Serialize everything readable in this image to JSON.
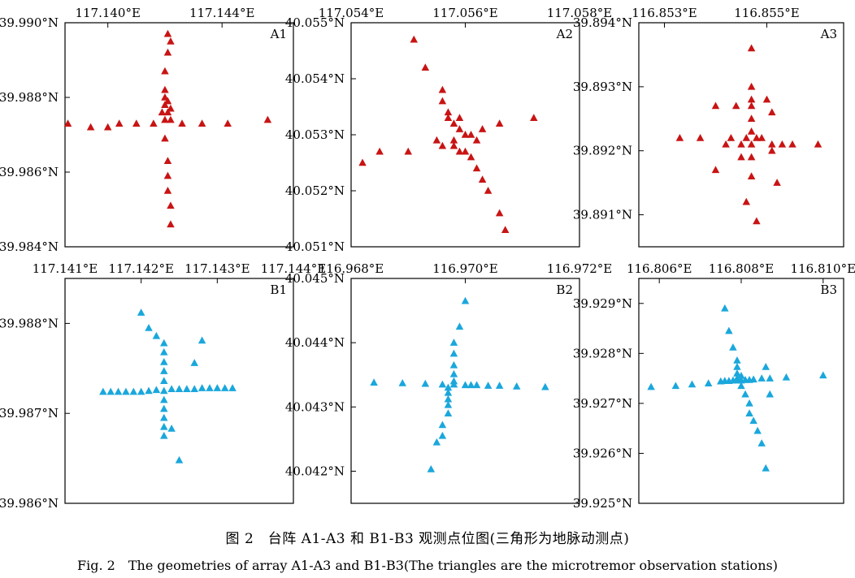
{
  "figure": {
    "caption_cn": "图 2　台阵 A1-A3 和 B1-B3 观测点位图(三角形为地脉动测点)",
    "caption_en": "Fig. 2　The geometries of array A1-A3 and B1-B3(The triangles are the microtremor observation stations)",
    "colors": {
      "A": "#c81414",
      "B": "#1aa7dc"
    }
  },
  "chart_data": [
    {
      "type": "scatter",
      "label": "A1",
      "color": "#c81414",
      "xlim": [
        117.1385,
        117.1465
      ],
      "ylim": [
        39.984,
        39.99
      ],
      "xticks": [
        117.14,
        117.144
      ],
      "xtick_labels": [
        "117.140°E",
        "117.144°E"
      ],
      "yticks": [
        39.984,
        39.986,
        39.988,
        39.99
      ],
      "ytick_labels": [
        "39.984°N",
        "39.986°N",
        "39.988°N",
        "39.990°N"
      ],
      "points": [
        [
          117.1386,
          39.9873
        ],
        [
          117.1394,
          39.9872
        ],
        [
          117.14,
          39.9872
        ],
        [
          117.1404,
          39.9873
        ],
        [
          117.141,
          39.9873
        ],
        [
          117.1416,
          39.9873
        ],
        [
          117.1422,
          39.9874
        ],
        [
          117.1426,
          39.9873
        ],
        [
          117.1433,
          39.9873
        ],
        [
          117.1442,
          39.9873
        ],
        [
          117.1456,
          39.9874
        ],
        [
          117.142,
          39.9874
        ],
        [
          117.1419,
          39.9876
        ],
        [
          117.1421,
          39.9876
        ],
        [
          117.142,
          39.9878
        ],
        [
          117.1422,
          39.9877
        ],
        [
          117.1421,
          39.9879
        ],
        [
          117.142,
          39.988
        ],
        [
          117.142,
          39.9882
        ],
        [
          117.142,
          39.9887
        ],
        [
          117.1421,
          39.9892
        ],
        [
          117.1421,
          39.9897
        ],
        [
          117.1422,
          39.9895
        ],
        [
          117.142,
          39.9869
        ],
        [
          117.1421,
          39.9863
        ],
        [
          117.1421,
          39.9859
        ],
        [
          117.1421,
          39.9855
        ],
        [
          117.1422,
          39.9851
        ],
        [
          117.1422,
          39.9846
        ]
      ]
    },
    {
      "type": "scatter",
      "label": "A2",
      "color": "#c81414",
      "xlim": [
        117.054,
        117.058
      ],
      "ylim": [
        40.051,
        40.055
      ],
      "xticks": [
        117.054,
        117.056,
        117.058
      ],
      "xtick_labels": [
        "117.054°E",
        "117.056°E",
        "117.058°E"
      ],
      "yticks": [
        40.051,
        40.052,
        40.053,
        40.054,
        40.055
      ],
      "ytick_labels": [
        "40.051°N",
        "40.052°N",
        "40.053°N",
        "40.054°N",
        "40.055°N"
      ],
      "points": [
        [
          117.0551,
          40.0547
        ],
        [
          117.0553,
          40.0542
        ],
        [
          117.0556,
          40.0538
        ],
        [
          117.0556,
          40.0536
        ],
        [
          117.0557,
          40.0534
        ],
        [
          117.0557,
          40.0533
        ],
        [
          117.0558,
          40.0532
        ],
        [
          117.0559,
          40.0533
        ],
        [
          117.0559,
          40.0531
        ],
        [
          117.056,
          40.053
        ],
        [
          117.0561,
          40.053
        ],
        [
          117.0562,
          40.0529
        ],
        [
          117.0563,
          40.0531
        ],
        [
          117.0566,
          40.0532
        ],
        [
          117.0572,
          40.0533
        ],
        [
          117.0555,
          40.0529
        ],
        [
          117.0556,
          40.0528
        ],
        [
          117.0558,
          40.0529
        ],
        [
          117.055,
          40.0527
        ],
        [
          117.0545,
          40.0527
        ],
        [
          117.0542,
          40.0525
        ],
        [
          117.0558,
          40.0528
        ],
        [
          117.0559,
          40.0527
        ],
        [
          117.056,
          40.0527
        ],
        [
          117.0561,
          40.0526
        ],
        [
          117.0562,
          40.0524
        ],
        [
          117.0563,
          40.0522
        ],
        [
          117.0564,
          40.052
        ],
        [
          117.0566,
          40.0516
        ],
        [
          117.0567,
          40.0513
        ]
      ]
    },
    {
      "type": "scatter",
      "label": "A3",
      "color": "#c81414",
      "xlim": [
        116.8525,
        116.8565
      ],
      "ylim": [
        39.8905,
        39.894
      ],
      "xticks": [
        116.853,
        116.855
      ],
      "xtick_labels": [
        "116.853°E",
        "116.855°E"
      ],
      "yticks": [
        39.891,
        39.892,
        39.893,
        39.894
      ],
      "ytick_labels": [
        "39.891°N",
        "39.892°N",
        "39.893°N",
        "39.894°N"
      ],
      "points": [
        [
          116.8533,
          39.8922
        ],
        [
          116.8537,
          39.8922
        ],
        [
          116.8542,
          39.8921
        ],
        [
          116.8543,
          39.8922
        ],
        [
          116.8545,
          39.8921
        ],
        [
          116.8546,
          39.8922
        ],
        [
          116.8547,
          39.8921
        ],
        [
          116.8548,
          39.8922
        ],
        [
          116.8549,
          39.8922
        ],
        [
          116.8551,
          39.8921
        ],
        [
          116.8553,
          39.8921
        ],
        [
          116.8555,
          39.8921
        ],
        [
          116.856,
          39.8921
        ],
        [
          116.8547,
          39.8936
        ],
        [
          116.8547,
          39.893
        ],
        [
          116.8547,
          39.8928
        ],
        [
          116.8547,
          39.8927
        ],
        [
          116.8547,
          39.8925
        ],
        [
          116.8547,
          39.8923
        ],
        [
          116.8547,
          39.8919
        ],
        [
          116.8547,
          39.8916
        ],
        [
          116.8546,
          39.8912
        ],
        [
          116.8548,
          39.8909
        ],
        [
          116.854,
          39.8927
        ],
        [
          116.8544,
          39.8927
        ],
        [
          116.855,
          39.8928
        ],
        [
          116.8551,
          39.8926
        ],
        [
          116.854,
          39.8917
        ],
        [
          116.8545,
          39.8919
        ],
        [
          116.8551,
          39.892
        ],
        [
          116.8552,
          39.8915
        ]
      ]
    },
    {
      "type": "scatter",
      "label": "B1",
      "color": "#1aa7dc",
      "xlim": [
        117.141,
        117.144
      ],
      "ylim": [
        39.986,
        39.9885
      ],
      "xticks": [
        117.141,
        117.142,
        117.143,
        117.144
      ],
      "xtick_labels": [
        "117.141°E",
        "117.142°E",
        "117.143°E",
        "117.144°E"
      ],
      "yticks": [
        39.986,
        39.987,
        39.988
      ],
      "ytick_labels": [
        "39.986°N",
        "39.987°N",
        "39.988°N"
      ],
      "points": [
        [
          117.1415,
          39.98724
        ],
        [
          117.1416,
          39.98724
        ],
        [
          117.1417,
          39.98724
        ],
        [
          117.1418,
          39.98724
        ],
        [
          117.1419,
          39.98724
        ],
        [
          117.142,
          39.98724
        ],
        [
          117.1421,
          39.98725
        ],
        [
          117.1422,
          39.98726
        ],
        [
          117.1423,
          39.98725
        ],
        [
          117.1424,
          39.98727
        ],
        [
          117.1425,
          39.98727
        ],
        [
          117.1426,
          39.98727
        ],
        [
          117.1427,
          39.98727
        ],
        [
          117.1428,
          39.98728
        ],
        [
          117.1429,
          39.98728
        ],
        [
          117.143,
          39.98728
        ],
        [
          117.1431,
          39.98728
        ],
        [
          117.1432,
          39.98728
        ],
        [
          117.142,
          39.98812
        ],
        [
          117.1421,
          39.98795
        ],
        [
          117.1422,
          39.98786
        ],
        [
          117.1423,
          39.98778
        ],
        [
          117.1423,
          39.98768
        ],
        [
          117.1423,
          39.98757
        ],
        [
          117.1423,
          39.98747
        ],
        [
          117.1423,
          39.98736
        ],
        [
          117.1423,
          39.98715
        ],
        [
          117.1423,
          39.98705
        ],
        [
          117.1423,
          39.98695
        ],
        [
          117.1423,
          39.98685
        ],
        [
          117.1423,
          39.98675
        ],
        [
          117.1424,
          39.98683
        ],
        [
          117.1427,
          39.98756
        ],
        [
          117.1428,
          39.98781
        ],
        [
          117.1425,
          39.98648
        ]
      ]
    },
    {
      "type": "scatter",
      "label": "B2",
      "color": "#1aa7dc",
      "xlim": [
        116.968,
        116.972
      ],
      "ylim": [
        40.0415,
        40.045
      ],
      "xticks": [
        116.968,
        116.97,
        116.972
      ],
      "xtick_labels": [
        "116.968°E",
        "116.970°E",
        "116.972°E"
      ],
      "yticks": [
        40.042,
        40.043,
        40.044,
        40.045
      ],
      "ytick_labels": [
        "40.042°N",
        "40.043°N",
        "40.044°N",
        "40.045°N"
      ],
      "points": [
        [
          116.9679,
          40.0434
        ],
        [
          116.9684,
          40.04338
        ],
        [
          116.9689,
          40.04337
        ],
        [
          116.9693,
          40.04336
        ],
        [
          116.9696,
          40.04335
        ],
        [
          116.9698,
          40.04335
        ],
        [
          116.97,
          40.04334
        ],
        [
          116.9701,
          40.04334
        ],
        [
          116.9702,
          40.04334
        ],
        [
          116.9704,
          40.04333
        ],
        [
          116.9706,
          40.04333
        ],
        [
          116.9709,
          40.04332
        ],
        [
          116.9714,
          40.04331
        ],
        [
          116.97,
          40.04465
        ],
        [
          116.9699,
          40.04425
        ],
        [
          116.9698,
          40.044
        ],
        [
          116.9698,
          40.04383
        ],
        [
          116.9698,
          40.04365
        ],
        [
          116.9698,
          40.04351
        ],
        [
          116.9698,
          40.0434
        ],
        [
          116.9697,
          40.0433
        ],
        [
          116.9697,
          40.04322
        ],
        [
          116.9697,
          40.04312
        ],
        [
          116.9697,
          40.04303
        ],
        [
          116.9697,
          40.0429
        ],
        [
          116.9696,
          40.04272
        ],
        [
          116.9696,
          40.04255
        ],
        [
          116.9695,
          40.04245
        ],
        [
          116.9694,
          40.04203
        ]
      ]
    },
    {
      "type": "scatter",
      "label": "B3",
      "color": "#1aa7dc",
      "xlim": [
        116.8055,
        116.8105
      ],
      "ylim": [
        39.925,
        39.9295
      ],
      "xticks": [
        116.806,
        116.808,
        116.81
      ],
      "xtick_labels": [
        "116.806°E",
        "116.808°E",
        "116.810°E"
      ],
      "yticks": [
        39.925,
        39.926,
        39.927,
        39.928,
        39.929
      ],
      "ytick_labels": [
        "39.925°N",
        "39.926°N",
        "39.927°N",
        "39.928°N",
        "39.929°N"
      ],
      "points": [
        [
          116.8058,
          39.92733
        ],
        [
          116.8064,
          39.92735
        ],
        [
          116.8068,
          39.92738
        ],
        [
          116.8072,
          39.9274
        ],
        [
          116.8075,
          39.92744
        ],
        [
          116.8076,
          39.92745
        ],
        [
          116.8077,
          39.92745
        ],
        [
          116.8078,
          39.92746
        ],
        [
          116.8079,
          39.92746
        ],
        [
          116.808,
          39.92746
        ],
        [
          116.8081,
          39.92747
        ],
        [
          116.8082,
          39.92747
        ],
        [
          116.8083,
          39.92748
        ],
        [
          116.8085,
          39.9275
        ],
        [
          116.8087,
          39.9275
        ],
        [
          116.8091,
          39.92752
        ],
        [
          116.81,
          39.92756
        ],
        [
          116.8076,
          39.9289
        ],
        [
          116.8077,
          39.92845
        ],
        [
          116.8078,
          39.92812
        ],
        [
          116.8079,
          39.92786
        ],
        [
          116.8079,
          39.92773
        ],
        [
          116.8079,
          39.9276
        ],
        [
          116.808,
          39.92755
        ],
        [
          116.8079,
          39.9275
        ],
        [
          116.808,
          39.92735
        ],
        [
          116.8081,
          39.92718
        ],
        [
          116.8082,
          39.927
        ],
        [
          116.8082,
          39.9268
        ],
        [
          116.8083,
          39.92665
        ],
        [
          116.8084,
          39.92645
        ],
        [
          116.8085,
          39.9262
        ],
        [
          116.8086,
          39.9257
        ],
        [
          116.8086,
          39.92773
        ],
        [
          116.8087,
          39.92718
        ]
      ]
    }
  ]
}
